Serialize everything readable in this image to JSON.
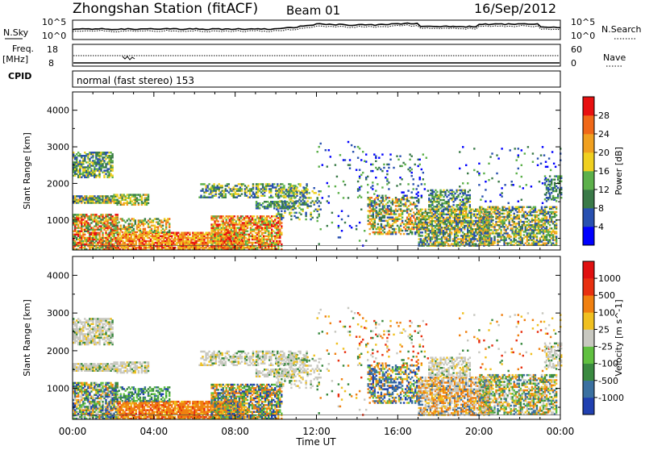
{
  "header": {
    "title": "Zhongshan Station (fitACF)",
    "beam": "Beam 01",
    "date": "16/Sep/2012"
  },
  "top_panels": {
    "nsky_label": "N.Sky",
    "nsearch_label": "N.Search",
    "nsky_ticks": [
      "10^5",
      "10^0"
    ],
    "nsearch_ticks": [
      "10^5",
      "10^0"
    ],
    "freq_label": "Freq.",
    "freq_unit": "[MHz]",
    "freq_ticks": [
      "18",
      "8"
    ],
    "nave_label": "Nave",
    "nave_ticks": [
      "60",
      "0"
    ],
    "cpid_label": "CPID",
    "cpid_text": "normal (fast stereo) 153"
  },
  "chart_data": [
    {
      "type": "heatmap",
      "name": "power",
      "ylabel": "Slant Range [km]",
      "ylim": [
        180,
        4500
      ],
      "yticks": [
        "4000",
        "3000",
        "2000",
        "1000"
      ],
      "colorbar_label": "Power [dB]",
      "colorbar_ticks": [
        "28",
        "24",
        "20",
        "16",
        "12",
        "8",
        "4"
      ],
      "colors": [
        "#0000ff",
        "#2850b0",
        "#3a7a48",
        "#5cb04a",
        "#f0d020",
        "#f0a020",
        "#f06818",
        "#e81010"
      ]
    },
    {
      "type": "heatmap",
      "name": "velocity",
      "ylabel": "Slant Range [km]",
      "ylim": [
        180,
        4500
      ],
      "yticks": [
        "4000",
        "3000",
        "2000",
        "1000"
      ],
      "colorbar_label": "Velocity [m s^-1]",
      "colorbar_ticks": [
        "1000",
        "500",
        "100",
        "25",
        "-25",
        "-100",
        "-500",
        "-1000"
      ],
      "colors": [
        "#2040b0",
        "#3a70a0",
        "#3a8a40",
        "#60c040",
        "#c8c8c0",
        "#f0c020",
        "#f08010",
        "#e83010",
        "#e01010"
      ]
    }
  ],
  "x_axis": {
    "ticks": [
      "00:00",
      "04:00",
      "08:00",
      "12:00",
      "16:00",
      "20:00",
      "00:00"
    ],
    "label": "Time UT"
  }
}
